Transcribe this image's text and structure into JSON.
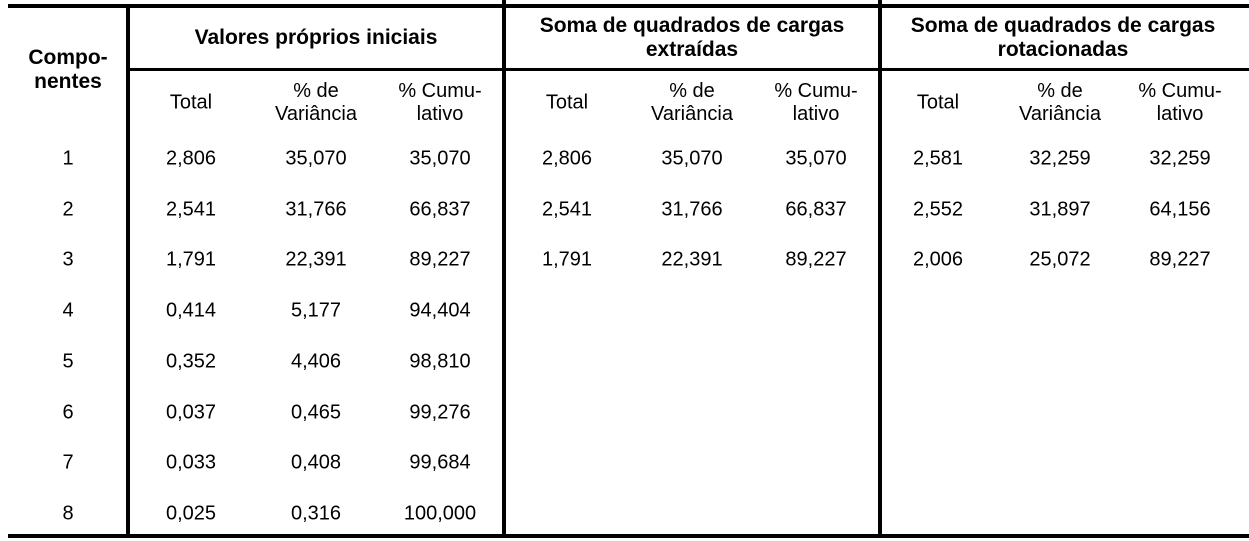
{
  "table": {
    "row_header": [
      "Compo-",
      "nentes"
    ],
    "groups": [
      {
        "title": [
          "Valores próprios iniciais"
        ]
      },
      {
        "title": [
          "Soma de quadrados de cargas",
          "extraídas"
        ]
      },
      {
        "title": [
          "Soma de quadrados de cargas",
          "rotacionadas"
        ]
      }
    ],
    "subheaders": [
      [
        "Total"
      ],
      [
        "% de",
        "Variância"
      ],
      [
        "% Cumu-",
        "lativo"
      ]
    ],
    "rows": [
      {
        "comp": "1",
        "initial": [
          "2,806",
          "35,070",
          "35,070"
        ],
        "extracted": [
          "2,806",
          "35,070",
          "35,070"
        ],
        "rotated": [
          "2,581",
          "32,259",
          "32,259"
        ]
      },
      {
        "comp": "2",
        "initial": [
          "2,541",
          "31,766",
          "66,837"
        ],
        "extracted": [
          "2,541",
          "31,766",
          "66,837"
        ],
        "rotated": [
          "2,552",
          "31,897",
          "64,156"
        ]
      },
      {
        "comp": "3",
        "initial": [
          "1,791",
          "22,391",
          "89,227"
        ],
        "extracted": [
          "1,791",
          "22,391",
          "89,227"
        ],
        "rotated": [
          "2,006",
          "25,072",
          "89,227"
        ]
      },
      {
        "comp": "4",
        "initial": [
          "0,414",
          "5,177",
          "94,404"
        ],
        "extracted": [
          "",
          "",
          ""
        ],
        "rotated": [
          "",
          "",
          ""
        ]
      },
      {
        "comp": "5",
        "initial": [
          "0,352",
          "4,406",
          "98,810"
        ],
        "extracted": [
          "",
          "",
          ""
        ],
        "rotated": [
          "",
          "",
          ""
        ]
      },
      {
        "comp": "6",
        "initial": [
          "0,037",
          "0,465",
          "99,276"
        ],
        "extracted": [
          "",
          "",
          ""
        ],
        "rotated": [
          "",
          "",
          ""
        ]
      },
      {
        "comp": "7",
        "initial": [
          "0,033",
          "0,408",
          "99,684"
        ],
        "extracted": [
          "",
          "",
          ""
        ],
        "rotated": [
          "",
          "",
          ""
        ]
      },
      {
        "comp": "8",
        "initial": [
          "0,025",
          "0,316",
          "100,000"
        ],
        "extracted": [
          "",
          "",
          ""
        ],
        "rotated": [
          "",
          "",
          ""
        ]
      }
    ]
  }
}
